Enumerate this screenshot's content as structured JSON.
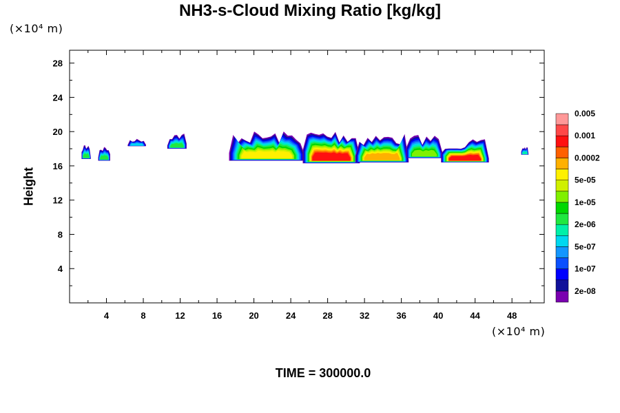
{
  "chart_data": {
    "type": "heatmap",
    "title": "NH3-s-Cloud Mixing Ratio [kg/kg]",
    "xlabel": "",
    "ylabel": "Height",
    "x_unit": "(×10⁴ m)",
    "y_unit": "(×10⁴ m)",
    "xlim": [
      0,
      51.5
    ],
    "ylim": [
      0,
      29.5
    ],
    "xticks": [
      4,
      8,
      12,
      16,
      20,
      24,
      28,
      32,
      36,
      40,
      44,
      48
    ],
    "yticks": [
      4,
      8,
      12,
      16,
      20,
      24,
      28
    ],
    "time_label": "TIME = 300000.0",
    "colorbar": {
      "colors": [
        "#7a00b0",
        "#10109a",
        "#0000ff",
        "#0a50ff",
        "#1296ff",
        "#00d8f0",
        "#00f0a8",
        "#20e840",
        "#00d800",
        "#80f000",
        "#d0f000",
        "#fff000",
        "#ffb000",
        "#ff6000",
        "#ff1010",
        "#ff4848",
        "#ff9898"
      ],
      "labels": [
        "2e-08",
        "1e-07",
        "5e-07",
        "2e-06",
        "1e-05",
        "5e-05",
        "0.0002",
        "0.001",
        "0.005"
      ]
    },
    "clouds": [
      {
        "x0": 1.3,
        "x1": 2.3,
        "top": 18.6,
        "bottom": 16.8,
        "max": 8
      },
      {
        "x0": 3.1,
        "x1": 4.4,
        "top": 18.4,
        "bottom": 16.6,
        "max": 8
      },
      {
        "x0": 6.3,
        "x1": 8.3,
        "top": 19.2,
        "bottom": 18.3,
        "max": 6
      },
      {
        "x0": 10.6,
        "x1": 12.7,
        "top": 19.9,
        "bottom": 18.0,
        "max": 8
      },
      {
        "x0": 17.3,
        "x1": 25.5,
        "top": 20.1,
        "bottom": 16.6,
        "max": 12
      },
      {
        "x0": 25.3,
        "x1": 31.5,
        "top": 20.4,
        "bottom": 16.3,
        "max": 15
      },
      {
        "x0": 31.0,
        "x1": 36.8,
        "top": 19.9,
        "bottom": 16.4,
        "max": 13
      },
      {
        "x0": 36.5,
        "x1": 40.5,
        "top": 19.7,
        "bottom": 16.9,
        "max": 10
      },
      {
        "x0": 40.3,
        "x1": 45.5,
        "top": 19.1,
        "bottom": 16.4,
        "max": 15
      },
      {
        "x0": 49.0,
        "x1": 49.8,
        "top": 18.3,
        "bottom": 17.3,
        "max": 7
      }
    ]
  }
}
